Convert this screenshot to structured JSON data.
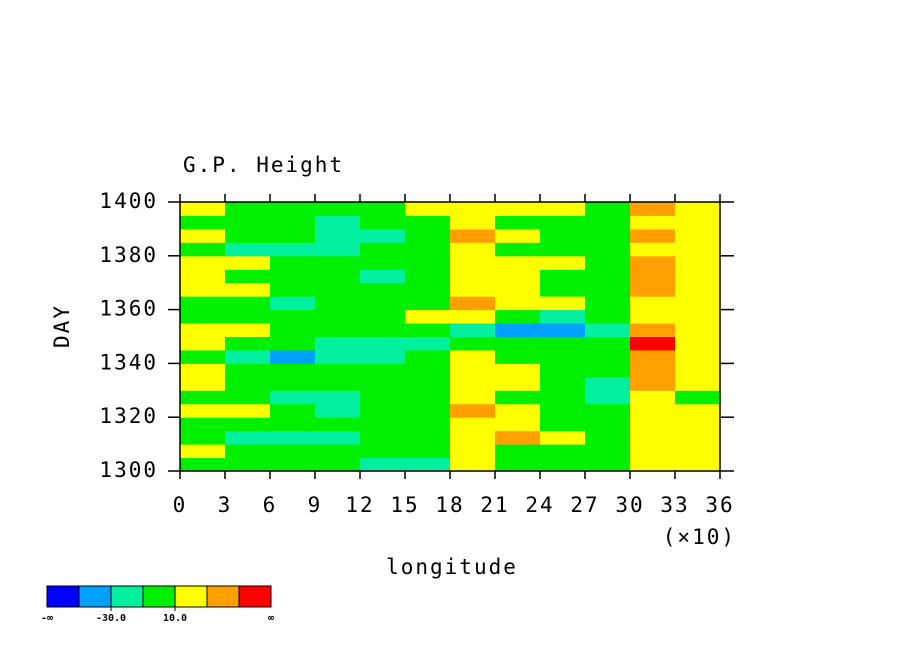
{
  "chart_data": {
    "type": "heatmap",
    "title": "G.P. Height",
    "xlabel": "longitude",
    "xmultiplier": "(×10)",
    "ylabel": "DAY",
    "x": [
      1.5,
      4.5,
      7.5,
      10.5,
      13.5,
      16.5,
      19.5,
      22.5,
      25.5,
      28.5,
      31.5,
      34.5
    ],
    "y": [
      1302.5,
      1307.5,
      1312.5,
      1317.5,
      1322.5,
      1327.5,
      1332.5,
      1337.5,
      1342.5,
      1347.5,
      1352.5,
      1357.5,
      1362.5,
      1367.5,
      1372.5,
      1377.5,
      1382.5,
      1387.5,
      1392.5,
      1397.5
    ],
    "z": [
      [
        5,
        8,
        0,
        -5,
        -15,
        -20,
        12,
        5,
        0,
        -5,
        15,
        20
      ],
      [
        12,
        5,
        0,
        -3,
        5,
        8,
        20,
        5,
        2,
        0,
        18,
        12
      ],
      [
        0,
        -15,
        -20,
        -12,
        0,
        5,
        25,
        35,
        10,
        5,
        20,
        15
      ],
      [
        8,
        5,
        -5,
        0,
        3,
        0,
        18,
        10,
        5,
        0,
        25,
        12
      ],
      [
        15,
        10,
        0,
        -12,
        -5,
        0,
        30,
        15,
        8,
        -5,
        20,
        18
      ],
      [
        0,
        -8,
        -15,
        -20,
        -10,
        0,
        15,
        5,
        -5,
        -18,
        12,
        5
      ],
      [
        10,
        5,
        0,
        5,
        8,
        2,
        22,
        12,
        0,
        -25,
        30,
        20
      ],
      [
        12,
        8,
        5,
        0,
        2,
        5,
        20,
        10,
        5,
        0,
        40,
        15
      ],
      [
        -10,
        -25,
        -35,
        -20,
        -12,
        -8,
        10,
        5,
        0,
        -5,
        35,
        20
      ],
      [
        20,
        8,
        -5,
        -15,
        -25,
        -30,
        5,
        0,
        2,
        5,
        55,
        25
      ],
      [
        25,
        15,
        8,
        5,
        0,
        -8,
        -15,
        -35,
        -45,
        -25,
        30,
        15
      ],
      [
        5,
        0,
        -5,
        0,
        5,
        10,
        12,
        -10,
        -15,
        -5,
        20,
        10
      ],
      [
        0,
        -10,
        -15,
        -5,
        0,
        5,
        40,
        20,
        10,
        5,
        25,
        15
      ],
      [
        15,
        10,
        5,
        0,
        -8,
        0,
        18,
        12,
        5,
        0,
        45,
        20
      ],
      [
        10,
        5,
        0,
        -10,
        -15,
        -5,
        22,
        15,
        8,
        0,
        30,
        15
      ],
      [
        18,
        12,
        5,
        0,
        2,
        5,
        25,
        15,
        10,
        5,
        35,
        20
      ],
      [
        0,
        -15,
        -20,
        -12,
        -5,
        0,
        15,
        5,
        0,
        -5,
        20,
        10
      ],
      [
        12,
        5,
        -10,
        -25,
        -15,
        0,
        30,
        10,
        5,
        0,
        40,
        15
      ],
      [
        5,
        0,
        -5,
        -12,
        -8,
        0,
        20,
        8,
        5,
        0,
        25,
        12
      ],
      [
        15,
        8,
        5,
        0,
        5,
        10,
        25,
        12,
        10,
        8,
        45,
        18
      ]
    ],
    "xlim": [
      0,
      36
    ],
    "ylim": [
      1300,
      1400
    ],
    "xticks": [
      0,
      3,
      6,
      9,
      12,
      15,
      18,
      21,
      24,
      27,
      30,
      33,
      36
    ],
    "yticks": [
      1300,
      1320,
      1340,
      1360,
      1380,
      1400
    ],
    "colorbar": {
      "colors": [
        "#0000ff",
        "#00a0ff",
        "#00f0a0",
        "#00f000",
        "#ffff00",
        "#ffa000",
        "#ff0000"
      ],
      "levels": [
        -50,
        -30,
        -10,
        10,
        30,
        50
      ],
      "labels": [
        {
          "value": -30,
          "label": "-30.0"
        },
        {
          "value": 10,
          "label": "10.0"
        }
      ],
      "low_label": "-∞",
      "high_label": "∞"
    }
  }
}
